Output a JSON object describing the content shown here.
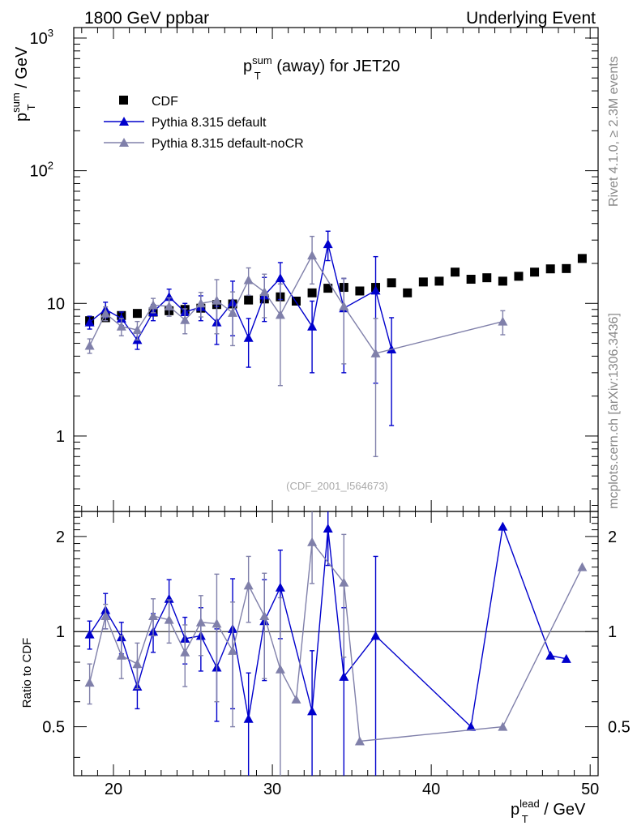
{
  "header": {
    "left": "1800 GeV ppbar",
    "right": "Underlying Event"
  },
  "side": {
    "rivet": "Rivet 4.1.0, ≥ 2.3M events",
    "site": "mcplots.cern.ch [arXiv:1306.3436]"
  },
  "colors": {
    "cdf": "#000000",
    "default": "#0000cc",
    "nocr": "#8080aa"
  },
  "chart_data": {
    "type": "scatter",
    "title_parts": {
      "base": "p",
      "sup": "sum",
      "sub": "T",
      "rest": " (away) for JET20"
    },
    "xlabel_parts": {
      "base": "p",
      "sup": "lead",
      "sub": "T",
      "rest": " / GeV"
    },
    "ylabel_parts": {
      "base": "p",
      "sup": "sum",
      "sub": "T",
      "rest": " / GeV"
    },
    "ratio_ylabel": "Ratio to CDF",
    "analysis_id": "(CDF_2001_I564673)",
    "xlim": [
      17.5,
      50.5
    ],
    "ylim": [
      0.27,
      1200
    ],
    "yscale": "log",
    "ratio_ylim": [
      0.35,
      2.4
    ],
    "xticks": [
      20,
      30,
      40,
      50
    ],
    "yticks_main": [
      {
        "v": 1,
        "mant": "1",
        "exp": ""
      },
      {
        "v": 10,
        "mant": "10",
        "exp": ""
      },
      {
        "v": 100,
        "mant": "10",
        "exp": "2"
      },
      {
        "v": 1000,
        "mant": "10",
        "exp": "3"
      }
    ],
    "yticks_ratio": [
      {
        "v": 0.5,
        "label": "0.5"
      },
      {
        "v": 1,
        "label": "1"
      },
      {
        "v": 2,
        "label": "2"
      }
    ],
    "series": [
      {
        "name": "CDF",
        "key": "cdf",
        "marker": "square",
        "x": [
          18.5,
          19.5,
          20.5,
          21.5,
          22.5,
          23.5,
          24.5,
          25.5,
          26.5,
          27.5,
          28.5,
          29.5,
          30.5,
          31.5,
          32.5,
          33.5,
          34.5,
          35.5,
          36.5,
          37.5,
          38.5,
          39.5,
          40.5,
          41.5,
          42.5,
          43.5,
          44.5,
          45.5,
          46.5,
          47.5,
          48.5,
          49.5
        ],
        "y": [
          7.4,
          7.8,
          8.1,
          8.4,
          8.6,
          8.8,
          9.0,
          9.2,
          9.8,
          9.9,
          10.6,
          10.8,
          11.2,
          10.4,
          12.0,
          13.0,
          13.2,
          12.4,
          13.2,
          14.3,
          12.0,
          14.5,
          14.7,
          17.2,
          15.2,
          15.6,
          14.7,
          16.0,
          17.2,
          18.2,
          18.3,
          21.8
        ]
      },
      {
        "name": "Pythia 8.315 default",
        "key": "default",
        "marker": "triangle",
        "x": [
          18.5,
          19.5,
          20.5,
          21.5,
          22.5,
          23.5,
          24.5,
          25.5,
          26.5,
          27.5,
          28.5,
          29.5,
          30.5,
          32.5,
          33.5,
          34.5,
          36.5,
          37.5
        ],
        "y": [
          7.2,
          9.0,
          7.7,
          5.3,
          8.6,
          11.2,
          8.6,
          9.4,
          7.2,
          10.2,
          5.5,
          11.5,
          15.5,
          6.7,
          28.0,
          9.2,
          12.5,
          4.5
        ],
        "err": [
          0.8,
          1.2,
          0.9,
          0.8,
          1.2,
          1.6,
          1.4,
          2.0,
          2.3,
          4.5,
          2.2,
          4.2,
          4.8,
          3.7,
          7.0,
          6.2,
          10.0,
          3.3
        ],
        "ratio_x": [
          18.5,
          19.5,
          20.5,
          21.5,
          22.5,
          23.5,
          24.5,
          25.5,
          26.5,
          27.5,
          28.5,
          29.5,
          30.5,
          32.5,
          33.5,
          34.5,
          36.5,
          42.5,
          44.5,
          47.5,
          48.5
        ],
        "ratio": [
          0.98,
          1.17,
          0.96,
          0.67,
          1.0,
          1.27,
          0.95,
          0.97,
          0.77,
          1.02,
          0.53,
          1.08,
          1.38,
          0.56,
          2.12,
          0.72,
          0.97,
          0.5,
          2.15,
          0.84,
          0.82
        ],
        "ratio_err": [
          0.1,
          0.15,
          0.11,
          0.1,
          0.14,
          0.19,
          0.16,
          0.22,
          0.25,
          0.45,
          0.21,
          0.38,
          0.43,
          0.31,
          0.5,
          0.47,
          0.76,
          0,
          0,
          0,
          0
        ]
      },
      {
        "name": "Pythia 8.315 default-noCR",
        "key": "nocr",
        "marker": "triangle",
        "x": [
          18.5,
          19.5,
          20.5,
          21.5,
          22.5,
          23.5,
          24.5,
          25.5,
          26.5,
          27.5,
          28.5,
          29.5,
          30.5,
          32.5,
          34.5,
          36.5,
          44.5
        ],
        "y": [
          4.8,
          8.4,
          6.7,
          6.3,
          9.7,
          9.5,
          7.5,
          10.0,
          10.5,
          8.5,
          15.0,
          12.2,
          8.2,
          23.0,
          9.5,
          4.2,
          7.3
        ],
        "err": [
          0.6,
          1.0,
          1.0,
          1.0,
          1.2,
          1.5,
          1.6,
          2.1,
          4.6,
          3.7,
          3.5,
          4.4,
          5.8,
          9.0,
          6.0,
          3.5,
          1.5
        ],
        "ratio_x": [
          18.5,
          19.5,
          20.5,
          21.5,
          22.5,
          23.5,
          24.5,
          25.5,
          26.5,
          27.5,
          28.5,
          29.5,
          30.5,
          31.5,
          32.5,
          34.5,
          35.5,
          44.5,
          49.5
        ],
        "ratio": [
          0.69,
          1.12,
          0.84,
          0.79,
          1.12,
          1.09,
          0.86,
          1.07,
          1.06,
          0.87,
          1.4,
          1.12,
          0.76,
          0.61,
          1.92,
          1.43,
          0.45,
          0.5,
          1.6
        ],
        "ratio_err": [
          0.1,
          0.1,
          0.13,
          0.13,
          0.15,
          0.17,
          0.19,
          0.23,
          0.46,
          0.37,
          0.33,
          0.41,
          0.52,
          0,
          0.5,
          0.6,
          0,
          0,
          0
        ]
      }
    ]
  }
}
